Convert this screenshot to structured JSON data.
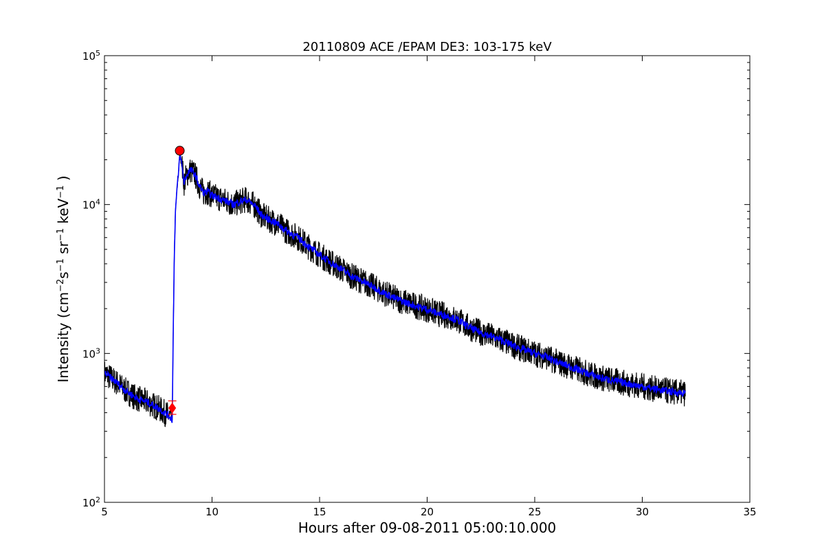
{
  "chart_data": {
    "type": "line",
    "title": "20110809 ACE /EPAM DE3: 103-175 keV",
    "xlabel": "Hours after 09-08-2011 05:00:10.000",
    "ylabel_parts": {
      "base": "Intensity (cm",
      "e1": "−2",
      "s": "s",
      "e2": "−1",
      "sr": " sr",
      "e3": "−1",
      "kev": " keV",
      "e4": "−1",
      "close": " )"
    },
    "xlim": [
      5,
      35
    ],
    "ylim": [
      100,
      100000
    ],
    "yscale": "log",
    "x_ticks": [
      "5",
      "10",
      "15",
      "20",
      "25",
      "30",
      "35"
    ],
    "y_ticks": [
      {
        "base": "10",
        "exp": "2"
      },
      {
        "base": "10",
        "exp": "3"
      },
      {
        "base": "10",
        "exp": "4"
      },
      {
        "base": "10",
        "exp": "5"
      }
    ],
    "grid": false,
    "series": [
      {
        "color": "#000000",
        "style": "noisy",
        "x": [
          5.0,
          5.5,
          6.0,
          6.5,
          7.0,
          7.5,
          8.0,
          8.15
        ],
        "y": [
          760,
          660,
          560,
          500,
          460,
          420,
          370,
          360
        ]
      },
      {
        "color": "#0000ff",
        "style": "smooth",
        "x": [
          5.0,
          5.5,
          6.0,
          6.5,
          7.0,
          7.5,
          8.0,
          8.15,
          8.2,
          8.25,
          8.3,
          8.35,
          8.4,
          8.45,
          8.5,
          8.55,
          8.6,
          8.7,
          8.8,
          8.9,
          9.0,
          9.2,
          9.4,
          9.6,
          9.8,
          10.0,
          10.5,
          11.0,
          11.3,
          11.6,
          12.0,
          12.3,
          12.6,
          13.0,
          13.5,
          14.0,
          14.5,
          15.0,
          15.5,
          16.0,
          16.5,
          16.8,
          17.0,
          17.5,
          18.0,
          18.5,
          19.0,
          19.5,
          20.0,
          20.5,
          21.0,
          21.5,
          22.0,
          22.5,
          23.0,
          23.5,
          24.0,
          24.5,
          25.0,
          25.5,
          26.0,
          26.5,
          27.0,
          27.5,
          28.0,
          28.5,
          29.0,
          29.5,
          30.0,
          30.5,
          31.0,
          31.5,
          32.0
        ],
        "y": [
          740,
          650,
          560,
          500,
          470,
          430,
          380,
          360,
          1500,
          5000,
          9000,
          11500,
          14000,
          17000,
          21500,
          20000,
          18500,
          14000,
          15500,
          16500,
          17000,
          16000,
          13500,
          12000,
          12200,
          11500,
          10800,
          10000,
          10500,
          10800,
          9800,
          8500,
          8000,
          7500,
          6600,
          6000,
          5200,
          4600,
          4100,
          3700,
          3300,
          3150,
          3050,
          2800,
          2550,
          2350,
          2200,
          2080,
          1980,
          1850,
          1780,
          1650,
          1480,
          1380,
          1300,
          1220,
          1130,
          1060,
          1000,
          950,
          880,
          830,
          780,
          730,
          690,
          665,
          640,
          620,
          600,
          580,
          565,
          550,
          540
        ]
      }
    ],
    "markers": [
      {
        "name": "peak",
        "shape": "circle",
        "color": "#ff0000",
        "x": 8.5,
        "y": 23000
      },
      {
        "name": "onset",
        "shape": "diamond",
        "color": "#ff0000",
        "x": 8.15,
        "y": 430,
        "error_low": 390,
        "error_high": 480
      }
    ]
  }
}
